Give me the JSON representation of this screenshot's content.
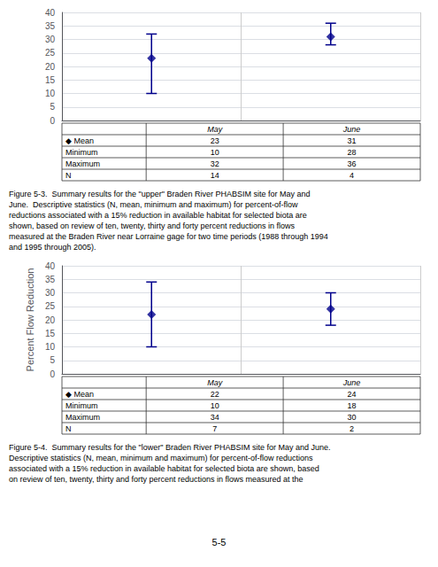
{
  "chart_data": [
    {
      "type": "scatter",
      "marker": "diamond",
      "color": "#00008B",
      "categories": [
        "May",
        "June"
      ],
      "values": [
        23,
        31
      ],
      "minimums": [
        10,
        28
      ],
      "maximums": [
        32,
        36
      ],
      "ns": [
        14,
        4
      ],
      "ylim": [
        0,
        40
      ],
      "yticks": [
        0,
        5,
        10,
        15,
        20,
        25,
        30,
        35,
        40
      ],
      "grid": true,
      "tick_labels": "y",
      "caption": "Figure 5-3.  Summary results for the \"upper\" Braden River PHABSIM site for May and\nJune.  Descriptive statistics (N, mean, minimum and maximum) for percent-of-flow\nreductions associated with a 15% reduction in available habitat for selected biota are\nshown, based on review of ten, twenty, thirty and forty percent reductions in flows\nmeasured at the Braden River near Lorraine gage for two time periods (1988 through 1994\nand 1995 through 2005)."
    },
    {
      "type": "scatter",
      "marker": "diamond",
      "color": "#00008B",
      "ylabel": "Percent Flow Reduction",
      "categories": [
        "May",
        "June"
      ],
      "values": [
        22,
        24
      ],
      "minimums": [
        10,
        18
      ],
      "maximums": [
        34,
        30
      ],
      "ns": [
        7,
        2
      ],
      "ylim": [
        0,
        40
      ],
      "yticks": [
        0,
        5,
        10,
        15,
        20,
        25,
        30,
        35,
        40
      ],
      "grid": true,
      "tick_labels": "y",
      "caption": "Figure 5-4.  Summary results for the \"lower\" Braden River PHABSIM site for May and June.\nDescriptive statistics (N, mean, minimum and maximum) for percent-of-flow reductions\nassociated with a 15% reduction in available habitat for selected biota are shown, based\non review of ten, twenty, thirty and forty percent reductions in flows measured at the"
    }
  ],
  "table_row_labels": [
    "◆ Mean",
    "Minimum",
    "Maximum",
    "N"
  ],
  "page_label": "5-5"
}
